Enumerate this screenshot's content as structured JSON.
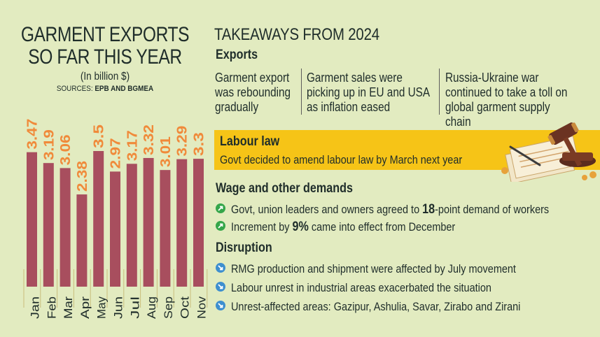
{
  "left": {
    "title_line1": "GARMENT EXPORTS",
    "title_line2": "SO FAR THIS YEAR",
    "unit": "(In billion $)",
    "sources_label": "SOURCES: ",
    "sources_value": "EPB AND BGMEA"
  },
  "chart_data": {
    "type": "bar",
    "categories": [
      "Jan",
      "Feb",
      "Mar",
      "Apr",
      "May",
      "Jun",
      "Jul",
      "Aug",
      "Sep",
      "Oct",
      "Nov"
    ],
    "values": [
      3.47,
      3.19,
      3.06,
      2.38,
      3.5,
      2.97,
      3.17,
      3.32,
      3.01,
      3.29,
      3.3
    ],
    "value_labels": [
      "3.47",
      "3.19",
      "3.06",
      "2.38",
      "3.5",
      "2.97",
      "3.17",
      "3.32",
      "3.01",
      "3.29",
      "3.3"
    ],
    "title": "GARMENT EXPORTS SO FAR THIS YEAR",
    "ylabel": "(In billion $)",
    "ylim": [
      0,
      3.6
    ],
    "grid": false,
    "bar_color": "#a84e5e",
    "label_color": "#f08a3a"
  },
  "right": {
    "title": "TAKEAWAYS FROM 2024",
    "exports": {
      "heading": "Exports",
      "columns": [
        {
          "l1": "Garment export",
          "l2": "was rebounding",
          "l3": "gradually"
        },
        {
          "l1": "Garment sales were",
          "l2": "picking up in EU and USA",
          "l3": "as inflation eased"
        },
        {
          "l1": "Russia-Ukraine war",
          "l2": "continued to take a toll on",
          "l3": "global garment supply chain"
        }
      ]
    },
    "labour": {
      "heading": "Labour law",
      "text": "Govt decided to amend labour law by March next year",
      "accent": "#f6c417"
    },
    "wage": {
      "heading": "Wage and other demands",
      "items": [
        {
          "pre": "Govt, union leaders and owners agreed to ",
          "bold": "18",
          "post": "-point demand of workers"
        },
        {
          "pre": "Increment by ",
          "bold": "9%",
          "post": " came into effect from December"
        }
      ],
      "icon": "green-arrow-icon"
    },
    "disruption": {
      "heading": "Disruption",
      "items": [
        "RMG production and shipment were affected by July movement",
        "Labour unrest in industrial areas exacerbated the situation",
        "Unrest-affected areas: Gazipur, Ashulia, Savar, Zirabo and Zirani"
      ],
      "icon": "blue-arrow-icon"
    }
  }
}
